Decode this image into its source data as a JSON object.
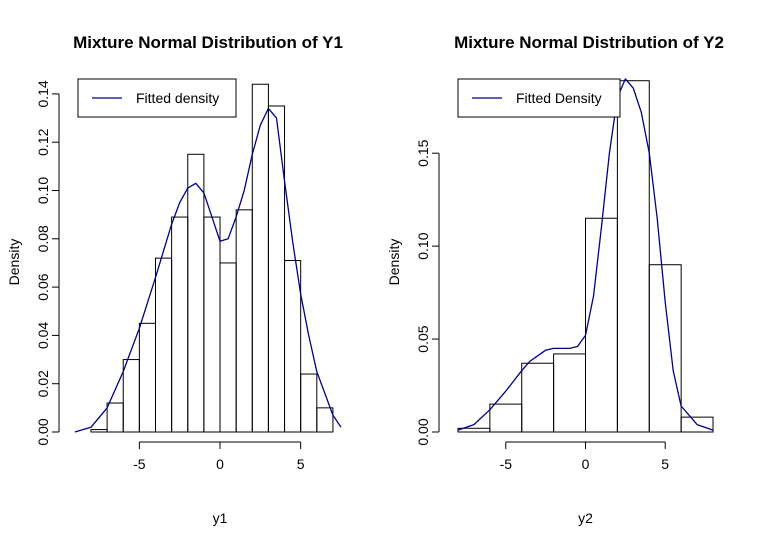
{
  "chart_data": [
    {
      "type": "histogram",
      "title": "Mixture Normal Distribution of Y1",
      "xlabel": "y1",
      "ylabel": "Density",
      "xlim": [
        -9.3,
        7.5
      ],
      "ylim": [
        0,
        0.147
      ],
      "x_ticks": [
        -5,
        0,
        5
      ],
      "y_ticks": [
        0.0,
        0.02,
        0.04,
        0.06,
        0.08,
        0.1,
        0.12,
        0.14
      ],
      "y_tick_labels": [
        "0.00",
        "0.02",
        "0.04",
        "0.06",
        "0.08",
        "0.10",
        "0.12",
        "0.14"
      ],
      "legend": {
        "position": "top-left",
        "label": "Fitted density",
        "color": "#00008b"
      },
      "bin_width": 1,
      "bins": [
        {
          "x0": -8,
          "x1": -7,
          "density": 0.001
        },
        {
          "x0": -7,
          "x1": -6,
          "density": 0.012
        },
        {
          "x0": -6,
          "x1": -5,
          "density": 0.03
        },
        {
          "x0": -5,
          "x1": -4,
          "density": 0.045
        },
        {
          "x0": -4,
          "x1": -3,
          "density": 0.072
        },
        {
          "x0": -3,
          "x1": -2,
          "density": 0.089
        },
        {
          "x0": -2,
          "x1": -1,
          "density": 0.115
        },
        {
          "x0": -1,
          "x1": 0,
          "density": 0.089
        },
        {
          "x0": 0,
          "x1": 1,
          "density": 0.07
        },
        {
          "x0": 1,
          "x1": 2,
          "density": 0.092
        },
        {
          "x0": 2,
          "x1": 3,
          "density": 0.144
        },
        {
          "x0": 3,
          "x1": 4,
          "density": 0.135
        },
        {
          "x0": 4,
          "x1": 5,
          "density": 0.071
        },
        {
          "x0": 5,
          "x1": 6,
          "density": 0.024
        },
        {
          "x0": 6,
          "x1": 7,
          "density": 0.01
        }
      ],
      "fitted_density": {
        "color": "#00008b",
        "x": [
          -9,
          -8,
          -7,
          -6,
          -5,
          -4,
          -3,
          -2.5,
          -2,
          -1.5,
          -1,
          -0.5,
          0,
          0.5,
          1,
          1.5,
          2,
          2.5,
          3,
          3.5,
          4,
          4.5,
          5,
          5.5,
          6,
          7,
          7.5
        ],
        "y": [
          0.0,
          0.002,
          0.01,
          0.025,
          0.043,
          0.064,
          0.086,
          0.095,
          0.101,
          0.103,
          0.099,
          0.089,
          0.079,
          0.08,
          0.089,
          0.1,
          0.115,
          0.127,
          0.134,
          0.13,
          0.104,
          0.079,
          0.057,
          0.04,
          0.025,
          0.007,
          0.002
        ]
      }
    },
    {
      "type": "histogram",
      "title": "Mixture Normal Distribution of Y2",
      "xlabel": "y2",
      "ylabel": "Density",
      "xlim": [
        -8.5,
        8.5
      ],
      "ylim": [
        0,
        0.191
      ],
      "x_ticks": [
        -5,
        0,
        5
      ],
      "y_ticks": [
        0.0,
        0.05,
        0.1,
        0.15
      ],
      "y_tick_labels": [
        "0.00",
        "0.05",
        "0.10",
        "0.15"
      ],
      "legend": {
        "position": "top-left",
        "label": "Fitted Density",
        "color": "#00008b"
      },
      "bin_width": 2,
      "bins": [
        {
          "x0": -8,
          "x1": -6,
          "density": 0.002
        },
        {
          "x0": -6,
          "x1": -4,
          "density": 0.015
        },
        {
          "x0": -4,
          "x1": -2,
          "density": 0.037
        },
        {
          "x0": -2,
          "x1": 0,
          "density": 0.042
        },
        {
          "x0": 0,
          "x1": 2,
          "density": 0.115
        },
        {
          "x0": 2,
          "x1": 4,
          "density": 0.189
        },
        {
          "x0": 4,
          "x1": 6,
          "density": 0.09
        },
        {
          "x0": 6,
          "x1": 8,
          "density": 0.008
        }
      ],
      "fitted_density": {
        "color": "#00008b",
        "x": [
          -8,
          -7,
          -6,
          -5,
          -4,
          -3.5,
          -3,
          -2.5,
          -2,
          -1.5,
          -1,
          -0.5,
          0,
          0.5,
          1,
          1.5,
          2,
          2.5,
          3,
          3.5,
          4,
          4.5,
          5,
          5.5,
          6,
          7,
          8
        ],
        "y": [
          0.001,
          0.004,
          0.012,
          0.022,
          0.033,
          0.038,
          0.041,
          0.044,
          0.045,
          0.045,
          0.045,
          0.046,
          0.052,
          0.073,
          0.11,
          0.15,
          0.18,
          0.19,
          0.185,
          0.172,
          0.15,
          0.115,
          0.07,
          0.033,
          0.014,
          0.004,
          0.001
        ]
      }
    }
  ]
}
